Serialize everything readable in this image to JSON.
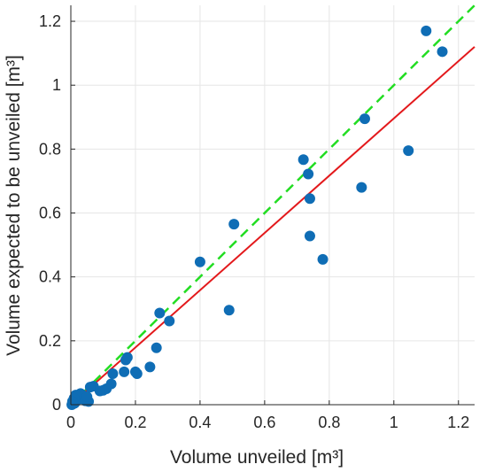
{
  "chart_data": {
    "type": "scatter",
    "title": "",
    "xlabel": "Volume unveiled [m³]",
    "ylabel": "Volume expected to be unveiled [m³]",
    "xlim": [
      0,
      1.25
    ],
    "ylim": [
      0,
      1.25
    ],
    "xticks": [
      0,
      0.2,
      0.4,
      0.6,
      0.8,
      1,
      1.2
    ],
    "xtick_labels": [
      "0",
      "0.2",
      "0.4",
      "0.6",
      "0.8",
      "1",
      "1.2"
    ],
    "yticks": [
      0,
      0.2,
      0.4,
      0.6,
      0.8,
      1,
      1.2
    ],
    "ytick_labels": [
      "0",
      "0.2",
      "0.4",
      "0.6",
      "0.8",
      "1",
      "1.2"
    ],
    "grid": true,
    "colors": {
      "points": "#0f6db5",
      "fit_line": "#e3191c",
      "identity_line": "#22dd22",
      "grid": "#e6e6e6",
      "axis": "#262626"
    },
    "points": [
      [
        1.1,
        1.17
      ],
      [
        1.15,
        1.105
      ],
      [
        1.045,
        0.795
      ],
      [
        0.91,
        0.895
      ],
      [
        0.9,
        0.68
      ],
      [
        0.72,
        0.767
      ],
      [
        0.735,
        0.722
      ],
      [
        0.74,
        0.645
      ],
      [
        0.74,
        0.528
      ],
      [
        0.78,
        0.455
      ],
      [
        0.505,
        0.565
      ],
      [
        0.4,
        0.447
      ],
      [
        0.49,
        0.296
      ],
      [
        0.305,
        0.262
      ],
      [
        0.275,
        0.287
      ],
      [
        0.265,
        0.178
      ],
      [
        0.245,
        0.118
      ],
      [
        0.2,
        0.103
      ],
      [
        0.205,
        0.097
      ],
      [
        0.175,
        0.148
      ],
      [
        0.17,
        0.14
      ],
      [
        0.165,
        0.103
      ],
      [
        0.13,
        0.097
      ],
      [
        0.125,
        0.065
      ],
      [
        0.11,
        0.05
      ],
      [
        0.1,
        0.045
      ],
      [
        0.09,
        0.043
      ],
      [
        0.07,
        0.058
      ],
      [
        0.06,
        0.055
      ],
      [
        0.055,
        0.01
      ],
      [
        0.04,
        0.02
      ],
      [
        0.035,
        0.03
      ],
      [
        0.03,
        0.035
      ],
      [
        0.025,
        0.02
      ],
      [
        0.02,
        0.015
      ],
      [
        0.015,
        0.03
      ],
      [
        0.012,
        0.005
      ],
      [
        0.01,
        0.02
      ],
      [
        0.008,
        0.003
      ],
      [
        0.005,
        0.01
      ],
      [
        0.003,
        0.0
      ],
      [
        0.045,
        0.012
      ],
      [
        0.05,
        0.025
      ]
    ],
    "fit_line": {
      "from": [
        0,
        0
      ],
      "to": [
        1.25,
        1.12
      ],
      "style": "solid"
    },
    "identity_line": {
      "from": [
        0,
        0
      ],
      "to": [
        1.25,
        1.25
      ],
      "style": "dashed"
    }
  }
}
